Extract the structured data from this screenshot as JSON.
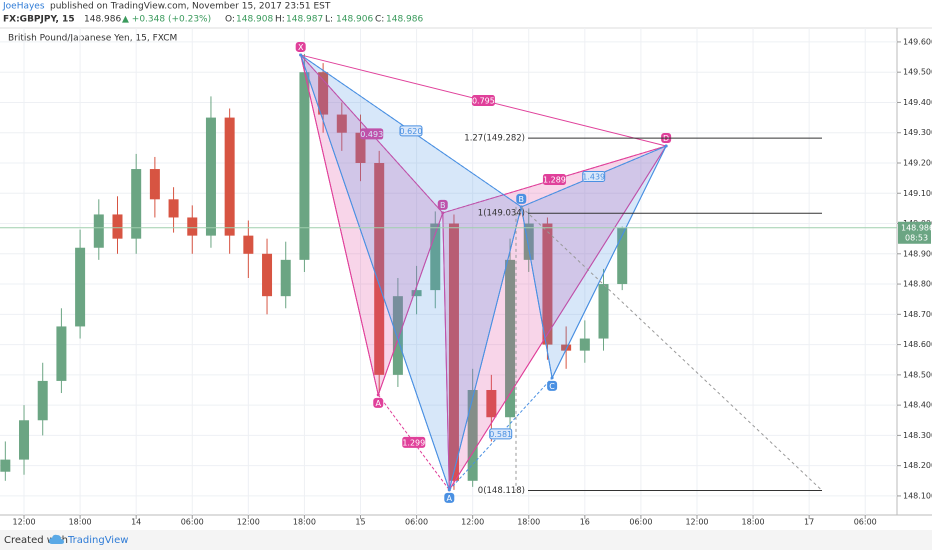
{
  "header": {
    "author": "JoeHayes",
    "published": "published on TradingView.com, November 15, 2017 23:51 EST",
    "symbol": "FX:GBPJPY, 15",
    "last": "148.986",
    "change": "▲ +0.348 (+0.23%)",
    "ohlc": [
      {
        "label": "O:",
        "value": "148.908"
      },
      {
        "label": "H:",
        "value": "148.987"
      },
      {
        "label": "L:",
        "value": "148.906"
      },
      {
        "label": "C:",
        "value": "148.986"
      }
    ]
  },
  "chart_data": {
    "type": "candlestick",
    "title": "British Pound/Japanese Yen, 15, FXCM",
    "x": [
      -2,
      0,
      2,
      4,
      6,
      8,
      10,
      12,
      14,
      16,
      18,
      20,
      22,
      24,
      26,
      28,
      30,
      32,
      34,
      36,
      38,
      40,
      42,
      44,
      46,
      48,
      50,
      52,
      54,
      56,
      58,
      60,
      62,
      64
    ],
    "open": [
      148.18,
      148.22,
      148.35,
      148.48,
      148.66,
      148.92,
      149.03,
      148.95,
      149.18,
      149.08,
      149.02,
      148.96,
      149.35,
      148.96,
      148.9,
      148.76,
      148.88,
      149.5,
      149.36,
      149.3,
      149.2,
      148.5,
      148.76,
      148.78,
      149.0,
      148.15,
      148.45,
      148.36,
      148.88,
      149.0,
      148.6,
      148.58,
      148.62,
      148.8
    ],
    "high": [
      148.28,
      148.4,
      148.54,
      148.72,
      148.98,
      149.08,
      149.09,
      149.23,
      149.22,
      149.12,
      149.06,
      149.42,
      149.38,
      149.01,
      148.95,
      148.94,
      149.56,
      149.53,
      149.4,
      149.36,
      149.24,
      148.82,
      148.86,
      149.04,
      149.03,
      148.52,
      148.5,
      148.95,
      149.05,
      149.02,
      148.66,
      148.68,
      148.85,
      148.99
    ],
    "low": [
      148.15,
      148.17,
      148.3,
      148.44,
      148.62,
      148.88,
      148.9,
      148.9,
      149.02,
      148.97,
      148.9,
      148.92,
      148.9,
      148.82,
      148.7,
      148.72,
      148.84,
      149.3,
      149.24,
      149.14,
      148.44,
      148.46,
      148.7,
      148.72,
      148.12,
      148.13,
      148.28,
      148.32,
      148.84,
      148.55,
      148.52,
      148.54,
      148.58,
      148.78
    ],
    "close": [
      148.22,
      148.35,
      148.48,
      148.66,
      148.92,
      149.03,
      148.95,
      149.18,
      149.08,
      149.02,
      148.96,
      149.35,
      148.96,
      148.9,
      148.76,
      148.88,
      149.5,
      149.36,
      149.3,
      149.2,
      148.5,
      148.76,
      148.78,
      149.0,
      148.15,
      148.45,
      148.36,
      148.88,
      149.0,
      148.6,
      148.58,
      148.62,
      148.8,
      148.986
    ],
    "up_color": "#6ba583",
    "down_color": "#d75442",
    "xlim": [
      -2.57,
      93.4
    ],
    "xticks": [
      {
        "value": 0,
        "label": "12:00"
      },
      {
        "value": 6,
        "label": "18:00"
      },
      {
        "value": 12,
        "label": "14"
      },
      {
        "value": 18,
        "label": "06:00"
      },
      {
        "value": 24,
        "label": "12:00"
      },
      {
        "value": 30,
        "label": "18:00"
      },
      {
        "value": 36,
        "label": "15"
      },
      {
        "value": 42,
        "label": "06:00"
      },
      {
        "value": 48,
        "label": "12:00"
      },
      {
        "value": 54,
        "label": "18:00"
      },
      {
        "value": 60,
        "label": "16"
      },
      {
        "value": 66,
        "label": "06:00"
      },
      {
        "value": 72,
        "label": "12:00"
      },
      {
        "value": 78,
        "label": "18:00"
      },
      {
        "value": 84,
        "label": "17"
      },
      {
        "value": 90,
        "label": "06:00"
      }
    ],
    "ylim": [
      148.037,
      149.646
    ],
    "yticks": [
      {
        "value": 148.1,
        "label": "148.100"
      },
      {
        "value": 148.2,
        "label": "148.200"
      },
      {
        "value": 148.3,
        "label": "148.300"
      },
      {
        "value": 148.4,
        "label": "148.400"
      },
      {
        "value": 148.5,
        "label": "148.500"
      },
      {
        "value": 148.6,
        "label": "148.600"
      },
      {
        "value": 148.7,
        "label": "148.700"
      },
      {
        "value": 148.8,
        "label": "148.800"
      },
      {
        "value": 148.9,
        "label": "148.900"
      },
      {
        "value": 149.0,
        "label": "149.000"
      },
      {
        "value": 149.1,
        "label": "149.100"
      },
      {
        "value": 149.2,
        "label": "149.200"
      },
      {
        "value": 149.3,
        "label": "149.300"
      },
      {
        "value": 149.4,
        "label": "149.400"
      },
      {
        "value": 149.5,
        "label": "149.500"
      },
      {
        "value": 149.6,
        "label": "149.600"
      }
    ],
    "grid": true,
    "last_price": {
      "value": 148.986,
      "label": "148.986"
    },
    "countdown": "08:53",
    "patterns": [
      {
        "color": "#e0409a",
        "points": [
          {
            "label": "X",
            "x": 29.6,
            "y": 149.557
          },
          {
            "label": "A",
            "x": 37.9,
            "y": 148.434
          },
          {
            "label": "B",
            "x": 44.8,
            "y": 149.035
          },
          {
            "label": null,
            "x": 45.5,
            "y": 148.12
          },
          {
            "label": "D",
            "x": 68.7,
            "y": 149.256
          }
        ],
        "ratios": [
          "0.493",
          "0.795",
          "1.289",
          "1.299"
        ]
      },
      {
        "color": "#4a90e2",
        "points": [
          {
            "label": null,
            "x": 29.6,
            "y": 149.557
          },
          {
            "label": "A",
            "x": 45.5,
            "y": 148.12
          },
          {
            "label": "B",
            "x": 53.2,
            "y": 149.055
          },
          {
            "label": "C",
            "x": 56.5,
            "y": 148.49
          },
          {
            "label": null,
            "x": 68.7,
            "y": 149.256
          }
        ],
        "ratios": [
          "0.620",
          "1.439",
          "0.581"
        ]
      }
    ],
    "fib_levels": [
      {
        "value": 149.282,
        "label": "1.27(149.282)"
      },
      {
        "value": 149.034,
        "label": "1(149.034)"
      },
      {
        "value": 148.118,
        "label": "0(148.118)"
      }
    ]
  },
  "footer": {
    "created": "Created with",
    "brand": "TradingView"
  }
}
